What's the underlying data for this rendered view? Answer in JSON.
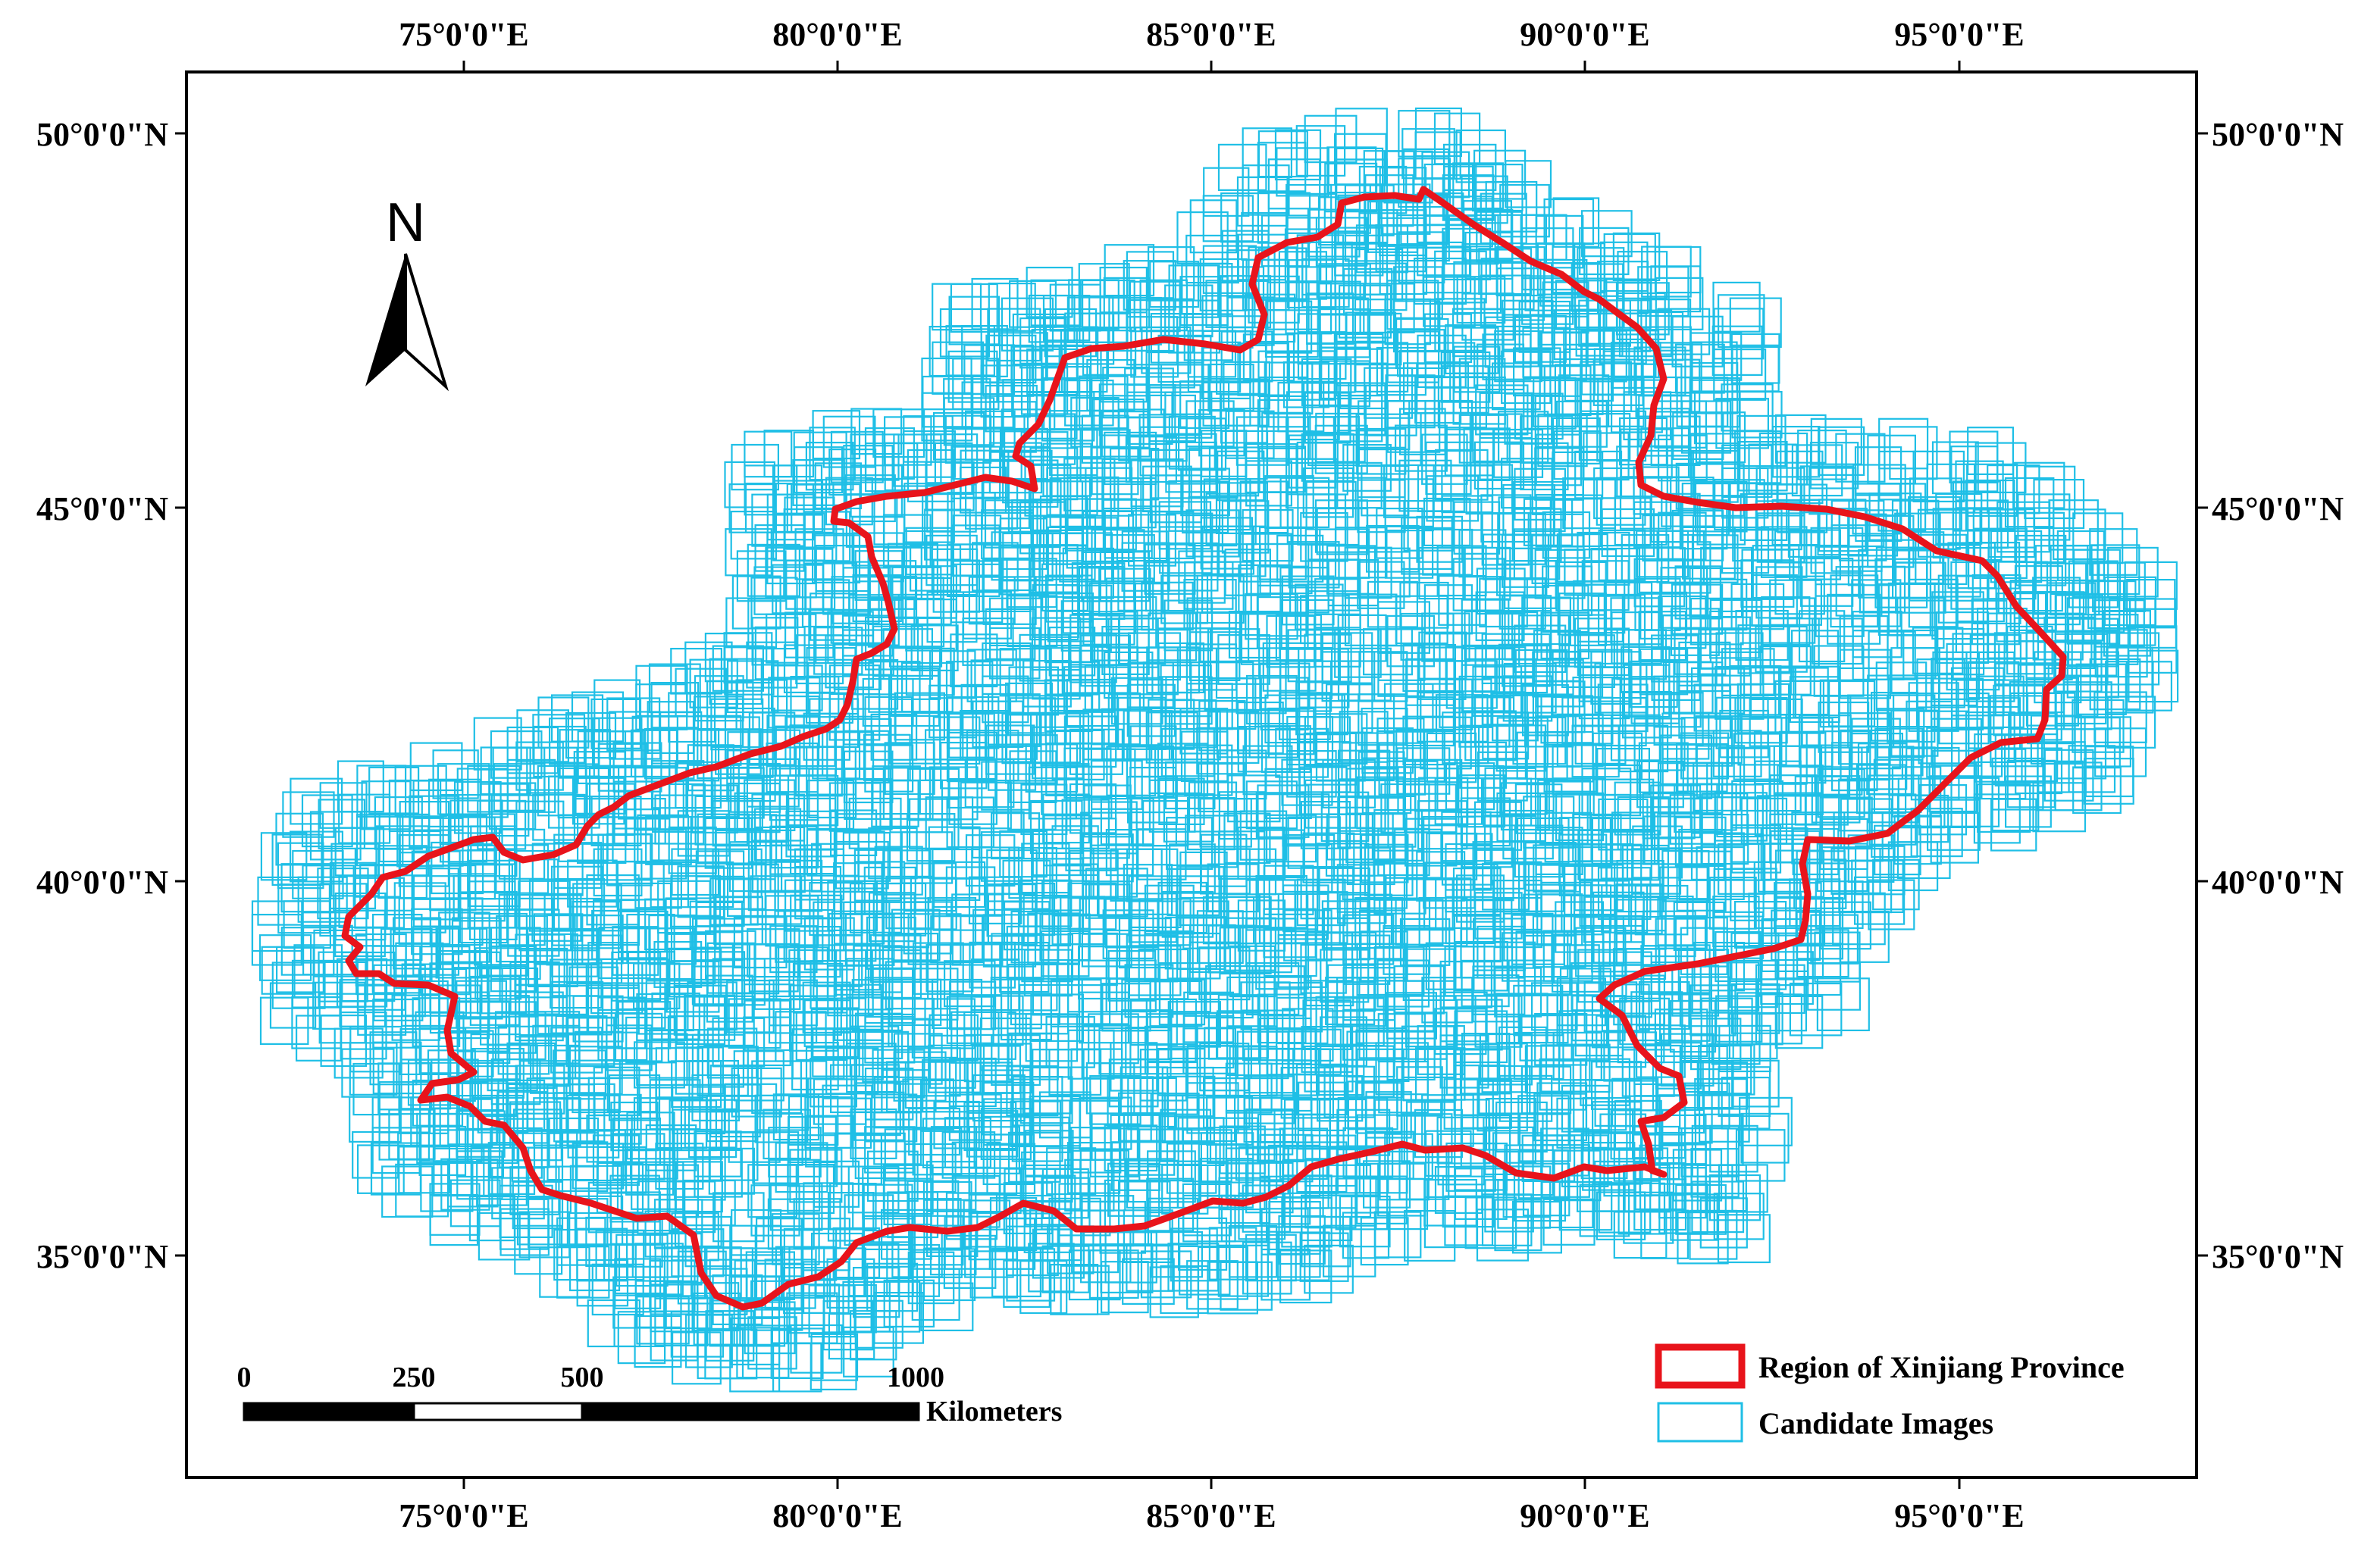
{
  "map": {
    "top_lon_labels": [
      "75°0'0\"E",
      "80°0'0\"E",
      "85°0'0\"E",
      "90°0'0\"E",
      "95°0'0\"E"
    ],
    "bottom_lon_labels": [
      "75°0'0\"E",
      "80°0'0\"E",
      "85°0'0\"E",
      "90°0'0\"E",
      "95°0'0\"E"
    ],
    "left_lat_labels": [
      "50°0'0\"N",
      "45°0'0\"N",
      "40°0'0\"N",
      "35°0'0\"N"
    ],
    "right_lat_labels": [
      "50°0'0\"N",
      "45°0'0\"N",
      "40°0'0\"N",
      "35°0'0\"N"
    ],
    "north_arrow": {
      "letter": "N",
      "icon": "north-arrow-icon"
    },
    "scale_bar": {
      "ticks": [
        "0",
        "250",
        "500",
        "1000"
      ],
      "unit": "Kilometers"
    },
    "legend": {
      "items": [
        {
          "label": "Region of Xinjiang Province",
          "color": "#e8141b"
        },
        {
          "label": "Candidate Images",
          "color": "#1fbfe6"
        }
      ]
    },
    "colors": {
      "boundary": "#e8141b",
      "footprints": "#1fbfe6",
      "frame": "#000000"
    }
  }
}
